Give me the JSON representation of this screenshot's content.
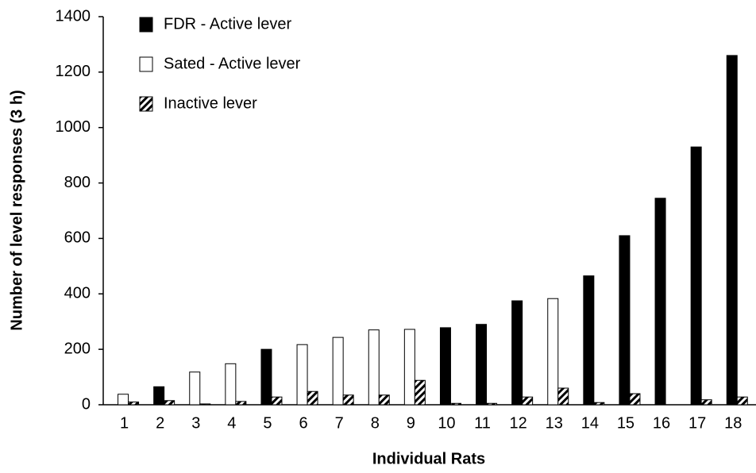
{
  "chart_data": {
    "type": "bar",
    "x_label": "Individual Rats",
    "y_label": "Number of level responses (3 h)",
    "categories": [
      "1",
      "2",
      "3",
      "4",
      "5",
      "6",
      "7",
      "8",
      "9",
      "10",
      "11",
      "12",
      "13",
      "14",
      "15",
      "16",
      "17",
      "18"
    ],
    "series": [
      {
        "name": "FDR - Active lever",
        "color": "#000000",
        "pattern": "solid",
        "values": [
          null,
          65,
          null,
          null,
          200,
          null,
          null,
          null,
          null,
          278,
          290,
          375,
          null,
          465,
          610,
          745,
          930,
          1260
        ]
      },
      {
        "name": "Sated - Active lever",
        "color": "#ffffff",
        "pattern": "solid",
        "values": [
          38,
          null,
          118,
          148,
          null,
          217,
          243,
          270,
          272,
          null,
          null,
          null,
          383,
          null,
          null,
          null,
          null,
          null
        ]
      },
      {
        "name": "Inactive lever",
        "color": "#000000",
        "pattern": "hatch",
        "values": [
          10,
          15,
          3,
          12,
          28,
          48,
          35,
          35,
          88,
          5,
          5,
          28,
          60,
          8,
          40,
          0,
          18,
          28
        ]
      }
    ],
    "ylim": [
      0,
      1400
    ],
    "yticks": [
      0,
      200,
      400,
      600,
      800,
      1000,
      1200,
      1400
    ],
    "grid": false,
    "legend": "top-left"
  }
}
